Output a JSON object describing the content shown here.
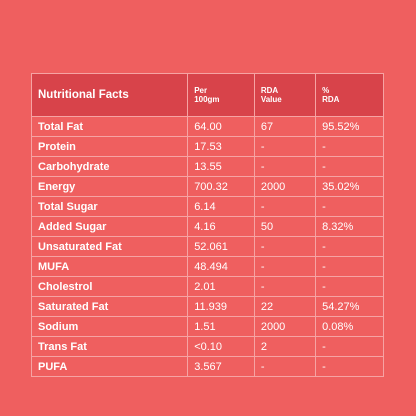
{
  "table": {
    "headers": {
      "name": "Nutritional Facts",
      "per_line1": "Per",
      "per_line2": "100gm",
      "rda_line1": "RDA",
      "rda_line2": "Value",
      "pct_line1": "%",
      "pct_line2": "RDA"
    },
    "rows": [
      {
        "name": "Total Fat",
        "per": "64.00",
        "rda": "67",
        "pct": "95.52%"
      },
      {
        "name": "Protein",
        "per": "17.53",
        "rda": "-",
        "pct": "-"
      },
      {
        "name": "Carbohydrate",
        "per": "13.55",
        "rda": "-",
        "pct": "-"
      },
      {
        "name": "Energy",
        "per": "700.32",
        "rda": "2000",
        "pct": "35.02%"
      },
      {
        "name": "Total Sugar",
        "per": "6.14",
        "rda": "-",
        "pct": "-"
      },
      {
        "name": "Added Sugar",
        "per": "4.16",
        "rda": "50",
        "pct": "8.32%"
      },
      {
        "name": "Unsaturated Fat",
        "per": "52.061",
        "rda": "-",
        "pct": "-"
      },
      {
        "name": "MUFA",
        "per": "48.494",
        "rda": "-",
        "pct": "-"
      },
      {
        "name": "Cholestrol",
        "per": "2.01",
        "rda": "-",
        "pct": "-"
      },
      {
        "name": "Saturated Fat",
        "per": "11.939",
        "rda": "22",
        "pct": "54.27%"
      },
      {
        "name": "Sodium",
        "per": "1.51",
        "rda": "2000",
        "pct": "0.08%"
      },
      {
        "name": "Trans Fat",
        "per": "<0.10",
        "rda": "2",
        "pct": "-"
      },
      {
        "name": "PUFA",
        "per": "3.567",
        "rda": "-",
        "pct": "-"
      }
    ]
  },
  "colors": {
    "background": "#ef5f5f",
    "header": "#d8434a",
    "border": "#f6a3a3",
    "text": "#ffffff"
  }
}
